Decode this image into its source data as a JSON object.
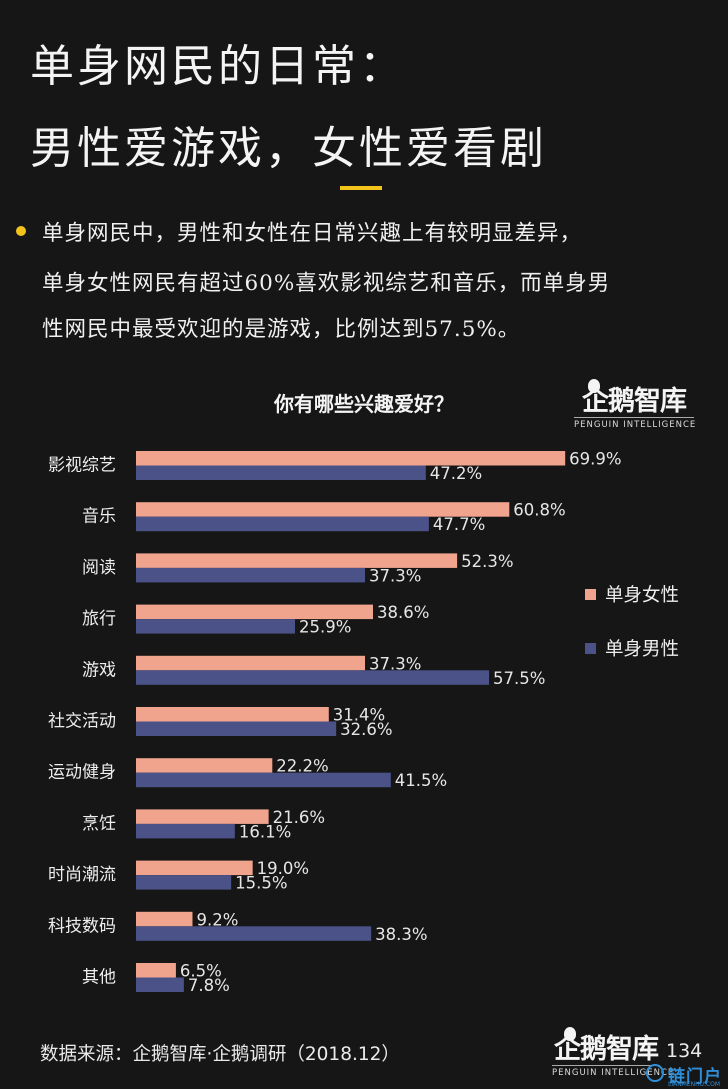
{
  "header": {
    "title_line1": "单身网民的日常：",
    "title_line2": "男性爱游戏，女性爱看剧",
    "desc_line1": "单身网民中，男性和女性在日常兴趣上有较明显差异，",
    "desc_line2": "单身女性网民有超过60%喜欢影视综艺和音乐，而单身男",
    "desc_line3": "性网民中最受欢迎的是游戏，比例达到57.5%。"
  },
  "brand": {
    "name": "企鹅智库",
    "sub": "PENGUIN INTELLIGENCE"
  },
  "footer": {
    "source": "数据来源：企鹅智库·企鹅调研（2018.12）",
    "page": "134"
  },
  "watermark": {
    "text": "链门户",
    "sub": "LIANMENHU.COM"
  },
  "colors": {
    "accent": "#f2c31b",
    "female": "#f0a48e",
    "male": "#4a5288"
  },
  "chart_data": {
    "type": "bar",
    "orientation": "horizontal",
    "title": "你有哪些兴趣爱好？",
    "categories": [
      "影视综艺",
      "音乐",
      "阅读",
      "旅行",
      "游戏",
      "社交活动",
      "运动健身",
      "烹饪",
      "时尚潮流",
      "科技数码",
      "其他"
    ],
    "series": [
      {
        "name": "单身女性",
        "values": [
          69.9,
          60.8,
          52.3,
          38.6,
          37.3,
          31.4,
          22.2,
          21.6,
          19.0,
          9.2,
          6.5
        ],
        "labels": [
          "69.9%",
          "60.8%",
          "52.3%",
          "38.6%",
          "37.3%",
          "31.4%",
          "22.2%",
          "21.6%",
          "19.0%",
          "9.2%",
          "6.5%"
        ]
      },
      {
        "name": "单身男性",
        "values": [
          47.2,
          47.7,
          37.3,
          25.9,
          57.5,
          32.6,
          41.5,
          16.1,
          15.5,
          38.3,
          7.8
        ],
        "labels": [
          "47.2%",
          "47.7%",
          "37.3%",
          "25.9%",
          "57.5%",
          "32.6%",
          "41.5%",
          "16.1%",
          "15.5%",
          "38.3%",
          "7.8%"
        ]
      }
    ],
    "unit": "%",
    "legend_position": "right",
    "grid": false
  }
}
